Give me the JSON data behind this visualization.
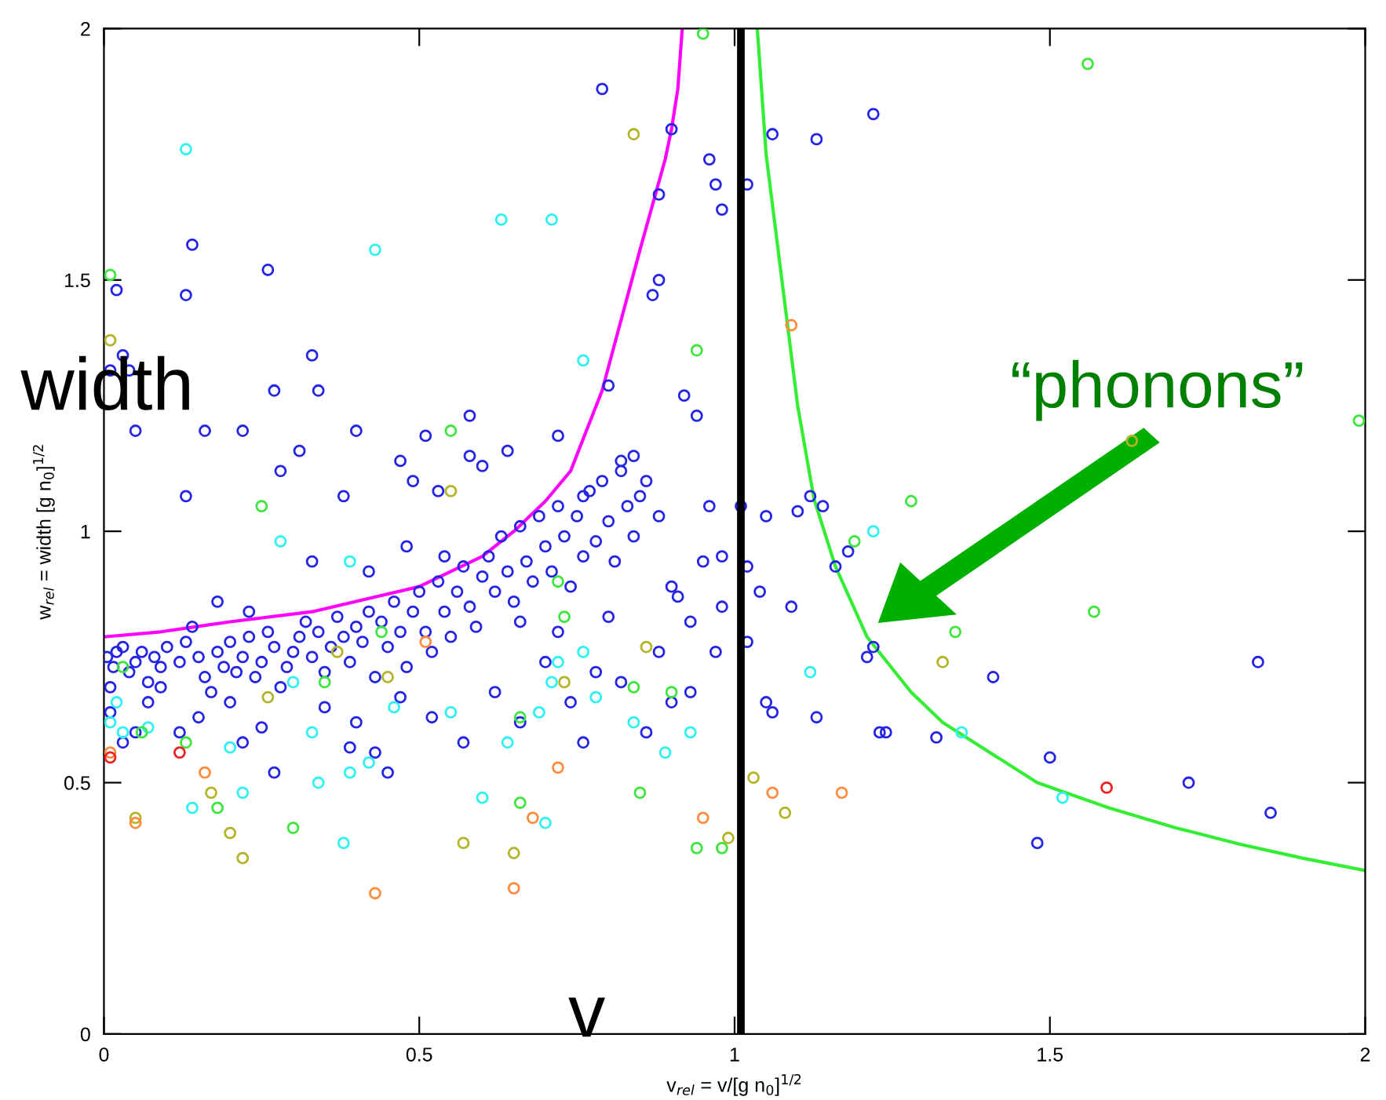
{
  "chart_data": {
    "type": "scatter",
    "xlabel": "v$_{rel}$ = v/[g n$_{0}$]$^{1/2}$",
    "ylabel": "w$_{rel}$ = width [g n$_{0}$]$^{1/2}$",
    "xlim": [
      0,
      2
    ],
    "ylim": [
      0,
      2
    ],
    "xticks": [
      0,
      0.5,
      1,
      1.5,
      2
    ],
    "yticks": [
      0,
      0.5,
      1,
      1.5,
      2
    ],
    "grid": false,
    "legend": false,
    "marker": "circle",
    "annotations": [
      "width",
      "v",
      "“phonons”"
    ],
    "ref_lines": [
      {
        "axis": "x",
        "value": 1.01,
        "color": "#000000"
      }
    ],
    "series": [
      {
        "color": "#2424e6",
        "x": [
          0.01,
          0.02,
          0.03,
          0.04,
          0.05,
          0.13,
          0.13,
          0.14,
          0.16,
          0.22,
          0.26,
          0.27,
          0.28,
          0.31,
          0.33,
          0.34,
          0.38,
          0.4,
          0.47,
          0.49,
          0.51,
          0.53,
          0.58,
          0.58,
          0.6,
          0.64,
          0.72,
          0.76,
          0.79,
          0.8,
          0.82,
          0.84,
          0.85,
          0.87,
          0.88,
          0.88,
          0.9,
          0.92,
          0.94,
          0.96,
          0.97,
          0.98,
          1.02,
          1.06,
          1.13,
          1.22,
          0.96,
          0.98,
          1.01,
          1.05,
          1.1,
          1.12,
          1.14,
          1.18,
          1.02,
          1.04,
          1.09,
          1.16,
          1.21,
          1.22,
          1.05,
          1.06,
          1.13,
          1.23,
          1.24,
          1.32,
          1.41,
          1.48,
          1.5,
          1.72,
          1.83,
          1.85,
          1.02,
          0.005,
          0.01,
          0.015,
          0.02,
          0.03,
          0.04,
          0.05,
          0.06,
          0.07,
          0.08,
          0.09,
          0.1,
          0.01,
          0.03,
          0.05,
          0.07,
          0.09,
          0.12,
          0.13,
          0.15,
          0.16,
          0.17,
          0.18,
          0.19,
          0.2,
          0.21,
          0.22,
          0.23,
          0.24,
          0.25,
          0.26,
          0.27,
          0.28,
          0.29,
          0.3,
          0.14,
          0.18,
          0.23,
          0.12,
          0.15,
          0.2,
          0.25,
          0.27,
          0.22,
          0.31,
          0.32,
          0.33,
          0.34,
          0.35,
          0.36,
          0.37,
          0.38,
          0.39,
          0.4,
          0.41,
          0.42,
          0.43,
          0.44,
          0.45,
          0.46,
          0.47,
          0.48,
          0.49,
          0.5,
          0.51,
          0.52,
          0.53,
          0.54,
          0.55,
          0.56,
          0.57,
          0.58,
          0.59,
          0.6,
          0.35,
          0.4,
          0.43,
          0.47,
          0.52,
          0.57,
          0.33,
          0.42,
          0.48,
          0.54,
          0.39,
          0.45,
          0.61,
          0.62,
          0.63,
          0.64,
          0.65,
          0.66,
          0.67,
          0.68,
          0.69,
          0.7,
          0.71,
          0.72,
          0.73,
          0.74,
          0.75,
          0.76,
          0.77,
          0.78,
          0.79,
          0.8,
          0.81,
          0.82,
          0.83,
          0.84,
          0.86,
          0.88,
          0.9,
          0.91,
          0.93,
          0.95,
          0.62,
          0.66,
          0.7,
          0.74,
          0.78,
          0.82,
          0.86,
          0.9,
          0.76,
          0.66,
          0.72,
          0.8,
          0.88,
          0.93,
          0.98,
          0.97
        ],
        "values": [
          1.32,
          1.48,
          1.35,
          1.32,
          1.2,
          1.07,
          1.47,
          1.57,
          1.2,
          1.2,
          1.52,
          1.28,
          1.12,
          1.16,
          1.35,
          1.28,
          1.07,
          1.2,
          1.14,
          1.1,
          1.19,
          1.08,
          1.23,
          1.15,
          1.13,
          1.16,
          1.19,
          1.07,
          1.88,
          1.29,
          1.14,
          1.15,
          1.07,
          1.47,
          1.67,
          1.5,
          1.8,
          1.27,
          1.23,
          1.74,
          1.69,
          1.64,
          1.69,
          1.79,
          1.78,
          1.83,
          1.05,
          0.95,
          1.05,
          1.03,
          1.04,
          1.07,
          1.05,
          0.96,
          0.93,
          0.88,
          0.85,
          0.93,
          0.75,
          0.77,
          0.66,
          0.64,
          0.63,
          0.6,
          0.6,
          0.59,
          0.71,
          0.38,
          0.55,
          0.5,
          0.74,
          0.44,
          0.78,
          0.75,
          0.69,
          0.73,
          0.76,
          0.77,
          0.72,
          0.74,
          0.76,
          0.7,
          0.75,
          0.73,
          0.77,
          0.64,
          0.58,
          0.6,
          0.66,
          0.69,
          0.74,
          0.78,
          0.75,
          0.71,
          0.68,
          0.76,
          0.73,
          0.78,
          0.72,
          0.75,
          0.79,
          0.71,
          0.74,
          0.8,
          0.77,
          0.69,
          0.73,
          0.76,
          0.81,
          0.86,
          0.84,
          0.6,
          0.63,
          0.66,
          0.61,
          0.52,
          0.58,
          0.79,
          0.82,
          0.75,
          0.8,
          0.72,
          0.77,
          0.83,
          0.79,
          0.74,
          0.81,
          0.78,
          0.84,
          0.71,
          0.82,
          0.77,
          0.86,
          0.8,
          0.73,
          0.84,
          0.88,
          0.8,
          0.76,
          0.9,
          0.84,
          0.79,
          0.88,
          0.93,
          0.85,
          0.81,
          0.91,
          0.65,
          0.62,
          0.56,
          0.67,
          0.63,
          0.58,
          0.94,
          0.92,
          0.97,
          0.95,
          0.57,
          0.52,
          0.95,
          0.88,
          0.99,
          0.92,
          0.86,
          1.01,
          0.94,
          0.9,
          1.03,
          0.97,
          0.92,
          1.05,
          0.99,
          0.89,
          1.03,
          0.95,
          1.08,
          0.98,
          1.1,
          1.02,
          0.94,
          1.12,
          1.05,
          0.99,
          1.1,
          1.03,
          0.89,
          0.87,
          0.82,
          0.94,
          0.68,
          0.62,
          0.74,
          0.66,
          0.72,
          0.7,
          0.6,
          0.66,
          0.58,
          0.82,
          0.8,
          0.83,
          0.76,
          0.68,
          0.85,
          0.76
        ]
      },
      {
        "color": "#2ef2f2",
        "x": [
          0.01,
          0.02,
          0.03,
          0.13,
          0.14,
          0.07,
          0.2,
          0.22,
          0.28,
          0.3,
          0.33,
          0.34,
          0.39,
          0.38,
          0.39,
          0.43,
          0.42,
          0.46,
          0.55,
          0.6,
          0.63,
          0.64,
          0.69,
          0.7,
          0.71,
          0.71,
          0.72,
          0.76,
          0.76,
          0.78,
          0.84,
          0.89,
          0.93,
          1.12,
          1.22,
          1.36,
          1.52
        ],
        "values": [
          0.62,
          0.66,
          0.6,
          1.76,
          0.45,
          0.61,
          0.57,
          0.48,
          0.98,
          0.7,
          0.6,
          0.5,
          0.94,
          0.38,
          0.52,
          1.56,
          0.54,
          0.65,
          0.64,
          0.47,
          1.62,
          0.58,
          0.64,
          0.42,
          0.7,
          1.62,
          0.74,
          0.76,
          1.34,
          0.67,
          0.62,
          0.56,
          0.6,
          0.72,
          1.0,
          0.6,
          0.47
        ]
      },
      {
        "color": "#3ce63c",
        "x": [
          0.01,
          0.03,
          0.06,
          0.13,
          0.18,
          0.25,
          0.35,
          0.44,
          0.55,
          0.66,
          0.66,
          0.72,
          0.73,
          0.84,
          0.85,
          0.9,
          0.94,
          0.94,
          0.95,
          1.35,
          1.28,
          1.19,
          1.56,
          1.57,
          1.99,
          0.98,
          0.3
        ],
        "values": [
          1.51,
          0.73,
          0.6,
          0.58,
          0.45,
          1.05,
          0.7,
          0.8,
          1.2,
          0.63,
          0.46,
          0.9,
          0.83,
          0.69,
          0.48,
          0.68,
          1.36,
          0.37,
          1.99,
          0.8,
          1.06,
          0.98,
          1.93,
          0.84,
          1.22,
          0.37,
          0.41
        ]
      },
      {
        "color": "#b4b428",
        "x": [
          0.01,
          0.05,
          0.17,
          0.2,
          0.22,
          0.26,
          0.37,
          0.45,
          0.55,
          0.57,
          0.65,
          0.73,
          0.84,
          0.86,
          0.99,
          1.03,
          1.08,
          1.33,
          1.63
        ],
        "values": [
          1.38,
          0.43,
          0.48,
          0.4,
          0.35,
          0.67,
          0.76,
          0.71,
          1.08,
          0.38,
          0.36,
          0.7,
          1.79,
          0.77,
          0.39,
          0.51,
          0.44,
          0.74,
          1.18
        ]
      },
      {
        "color": "#ff8c3c",
        "x": [
          0.01,
          0.05,
          0.16,
          0.43,
          0.51,
          0.65,
          0.68,
          0.72,
          0.95,
          1.06,
          1.09,
          1.17
        ],
        "values": [
          0.56,
          0.42,
          0.52,
          0.28,
          0.78,
          0.29,
          0.43,
          0.53,
          0.43,
          0.48,
          1.41,
          0.48
        ]
      },
      {
        "color": "#ee2222",
        "x": [
          0.01,
          0.12,
          1.59
        ],
        "values": [
          0.55,
          0.56,
          0.49
        ]
      },
      {
        "type": "line",
        "marker": "none",
        "color": "#ff00ff",
        "x": [
          0,
          0.09,
          0.2,
          0.33,
          0.5,
          0.6,
          0.65,
          0.7,
          0.74,
          0.79,
          0.82,
          0.85,
          0.87,
          0.89,
          0.9,
          0.91,
          0.917
        ],
        "values": [
          0.79,
          0.8,
          0.82,
          0.84,
          0.89,
          0.95,
          1.0,
          1.06,
          1.12,
          1.28,
          1.42,
          1.56,
          1.65,
          1.74,
          1.8,
          1.88,
          2.0
        ]
      },
      {
        "type": "line",
        "marker": "none",
        "color": "#33ee33",
        "x": [
          1.036,
          1.05,
          1.075,
          1.1,
          1.126,
          1.16,
          1.21,
          1.28,
          1.33,
          1.386,
          1.48,
          1.593,
          1.7,
          1.8,
          1.9,
          2.0
        ],
        "values": [
          2.0,
          1.75,
          1.5,
          1.25,
          1.064,
          0.93,
          0.79,
          0.68,
          0.62,
          0.575,
          0.5,
          0.45,
          0.41,
          0.378,
          0.35,
          0.325
        ]
      }
    ]
  }
}
